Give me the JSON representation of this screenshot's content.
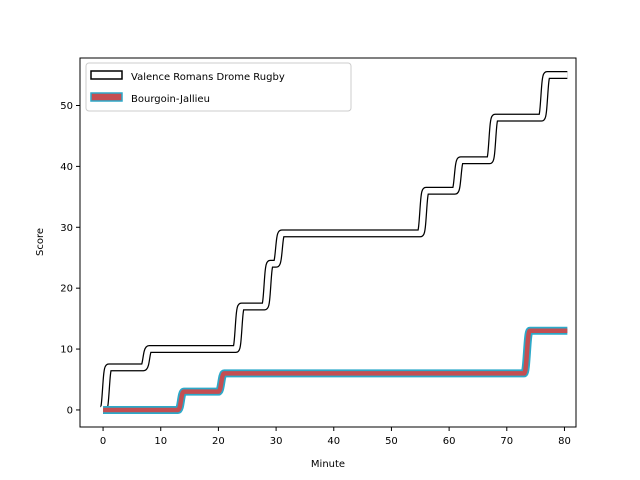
{
  "chart_data": {
    "type": "line",
    "title": "",
    "xlabel": "Minute",
    "ylabel": "Score",
    "xlim": [
      -4,
      82
    ],
    "ylim": [
      -2.8,
      57.8
    ],
    "xticks": [
      0,
      10,
      20,
      30,
      40,
      50,
      60,
      70,
      80
    ],
    "yticks": [
      0,
      10,
      20,
      30,
      40,
      50
    ],
    "grid": false,
    "legend_position": "top-left",
    "series": [
      {
        "name": "Valence Romans Drome Rugby",
        "style": "black-outline-white-fill",
        "colors": {
          "outline": "#000000",
          "fill": "#ffffff"
        },
        "points": [
          [
            0,
            0
          ],
          [
            1,
            7
          ],
          [
            7,
            7
          ],
          [
            8,
            10
          ],
          [
            23,
            10
          ],
          [
            24,
            17
          ],
          [
            28,
            17
          ],
          [
            29,
            24
          ],
          [
            30,
            24
          ],
          [
            31,
            29
          ],
          [
            55,
            29
          ],
          [
            56,
            36
          ],
          [
            61,
            36
          ],
          [
            62,
            41
          ],
          [
            67,
            41
          ],
          [
            68,
            48
          ],
          [
            76,
            48
          ],
          [
            77,
            55
          ],
          [
            80.5,
            55
          ]
        ]
      },
      {
        "name": "Bourgoin-Jallieu",
        "style": "teal-outline-red-fill",
        "colors": {
          "outline": "#2ca9c9",
          "fill": "#c44e52"
        },
        "points": [
          [
            0,
            0
          ],
          [
            13,
            0
          ],
          [
            14,
            3
          ],
          [
            20,
            3
          ],
          [
            21,
            6
          ],
          [
            73,
            6
          ],
          [
            74,
            13
          ],
          [
            80.5,
            13
          ]
        ]
      }
    ]
  }
}
